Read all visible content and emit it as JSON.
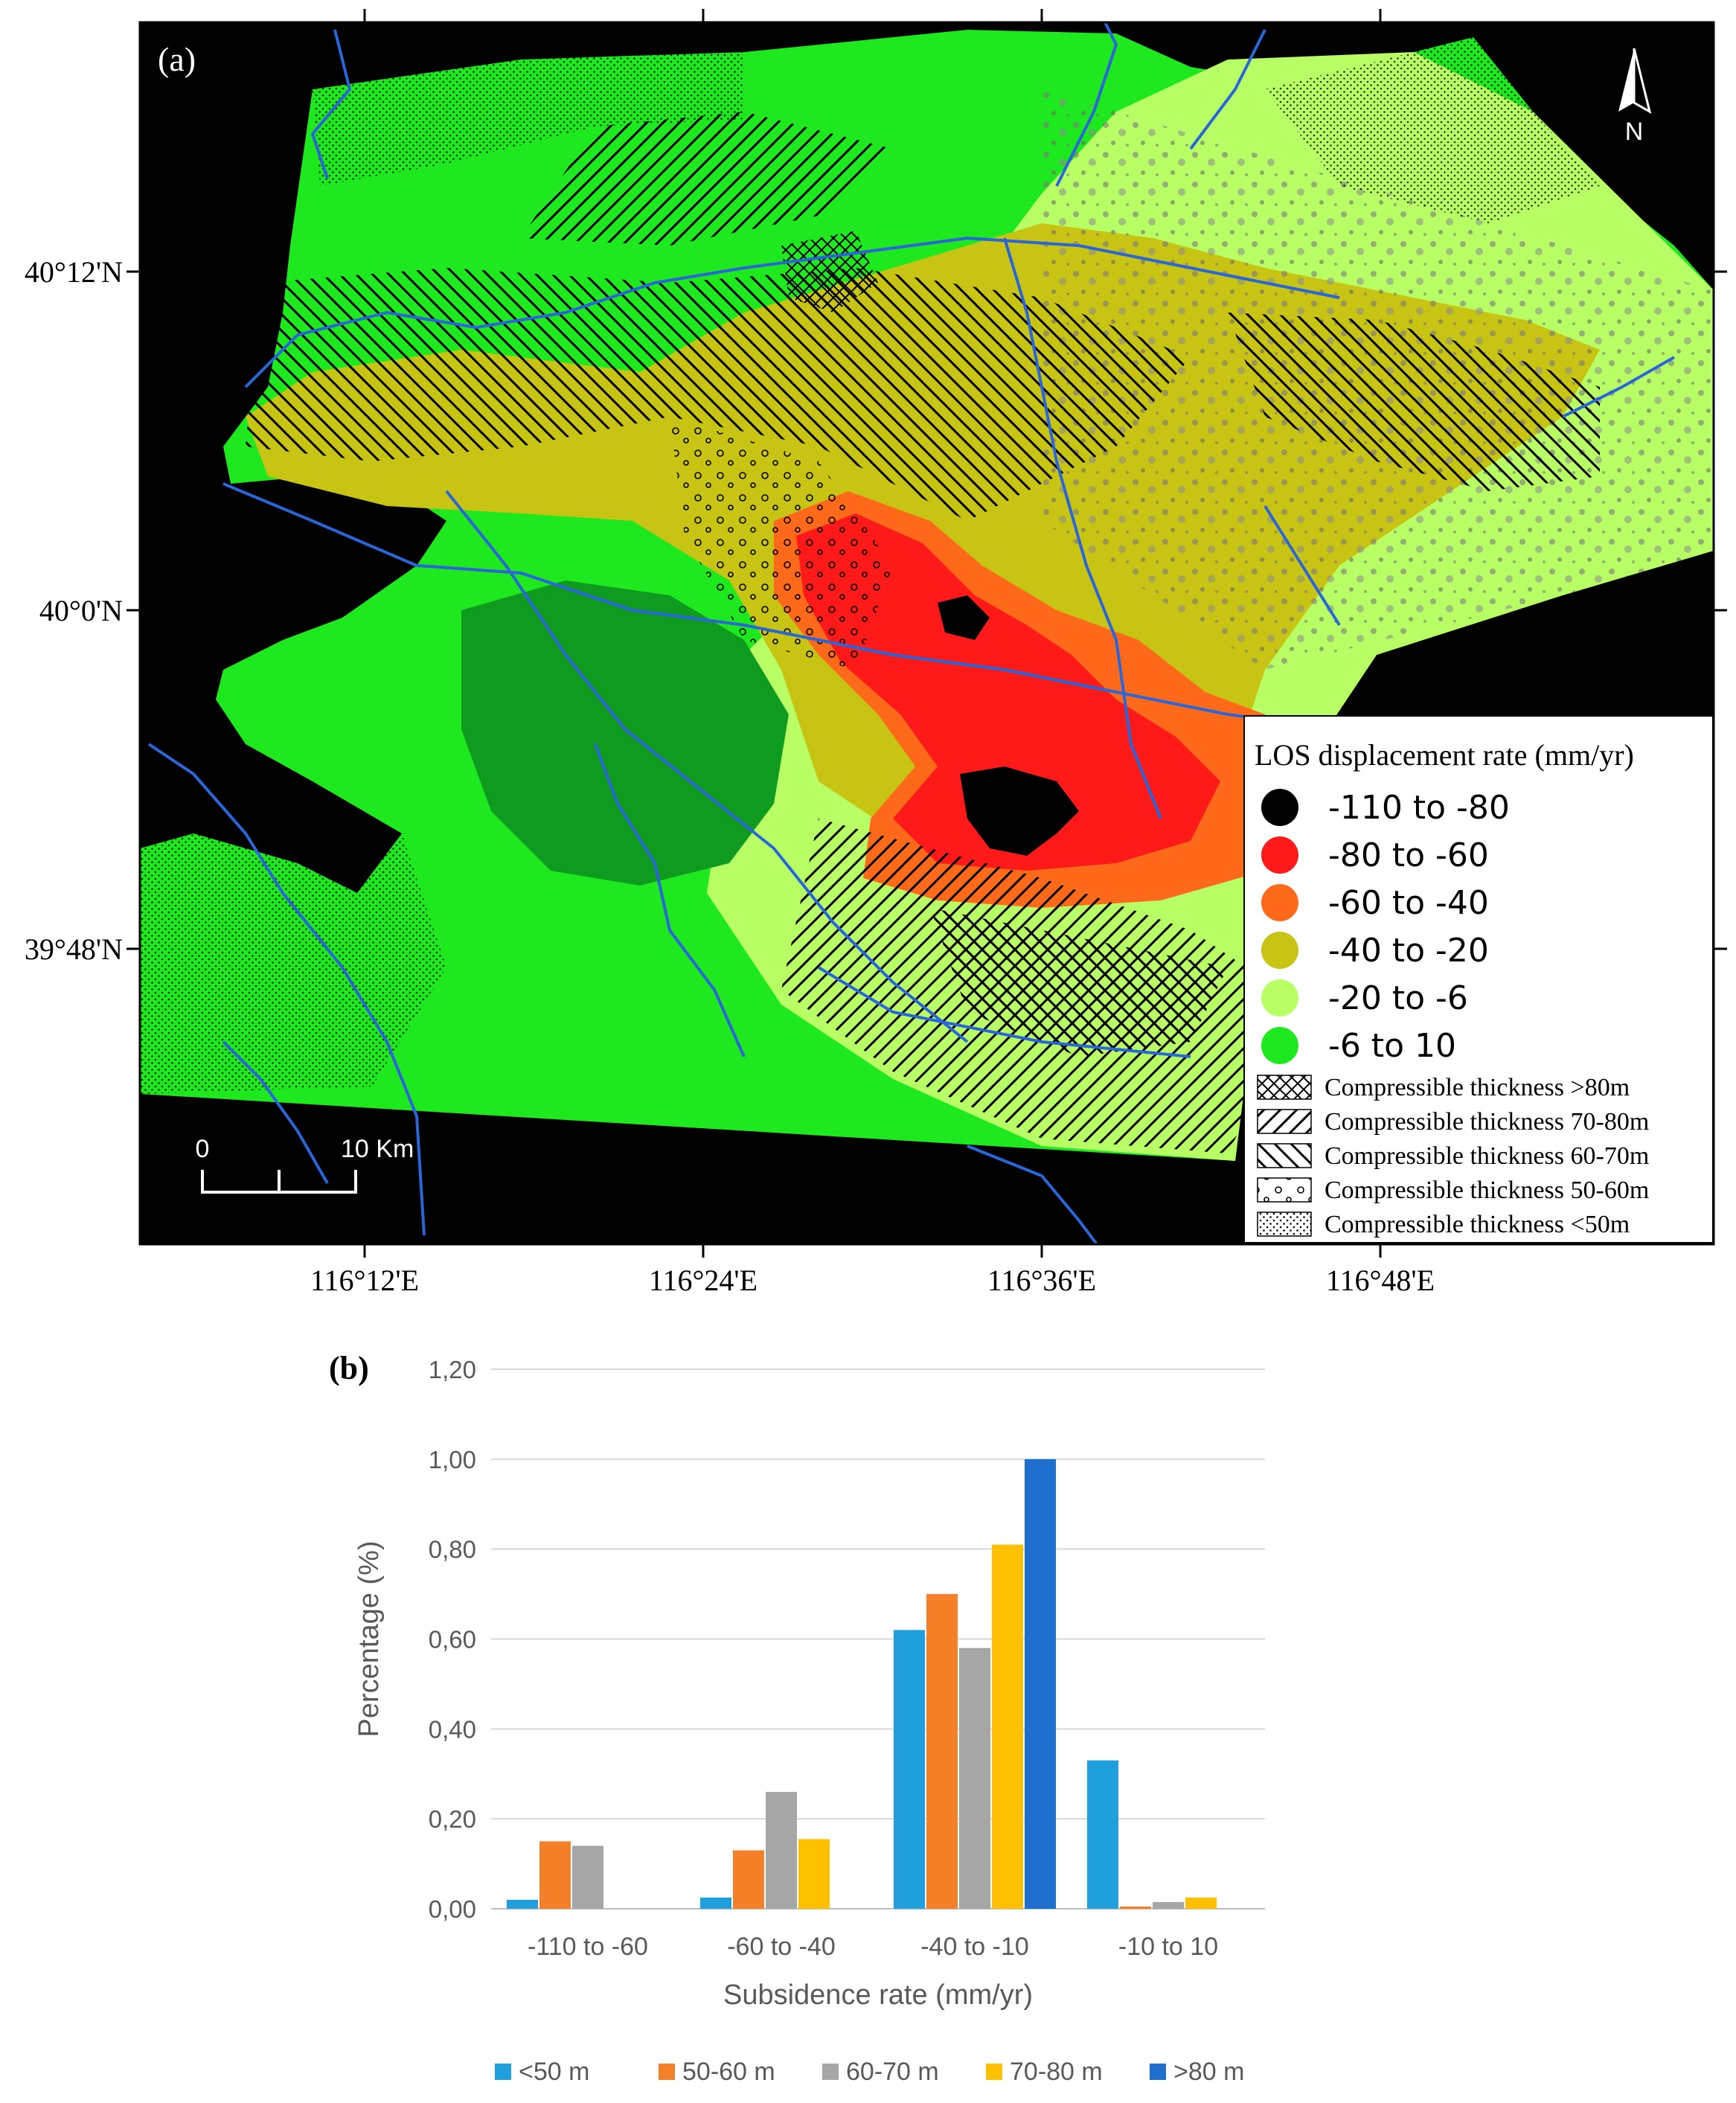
{
  "panel_a": {
    "label": "(a)",
    "north": "N",
    "scale": {
      "zero": "0",
      "end": "10 Km"
    },
    "lat_labels": [
      "40°12'N",
      "40°0'N",
      "39°48'N"
    ],
    "lon_labels": [
      "116°12'E",
      "116°24'E",
      "116°36'E",
      "116°48'E"
    ],
    "legend": {
      "title": "LOS displacement rate (mm/yr)",
      "rate_classes": [
        {
          "label": "-110  to  -80",
          "color": "#000000"
        },
        {
          "label": "-80  to  -60",
          "color": "#ff1a1a"
        },
        {
          "label": "-60  to  -40",
          "color": "#ff6a1a"
        },
        {
          "label": "-40  to  -20",
          "color": "#c8c413"
        },
        {
          "label": "-20  to  -6",
          "color": "#b8ff66"
        },
        {
          "label": "-6  to  10",
          "color": "#1ee81e"
        }
      ],
      "thickness_classes": [
        {
          "label": "Compressible thickness >80m",
          "pattern": "cross"
        },
        {
          "label": "Compressible thickness 70-80m",
          "pattern": "forward"
        },
        {
          "label": "Compressible thickness 60-70m",
          "pattern": "back"
        },
        {
          "label": "Compressible thickness 50-60m",
          "pattern": "circles"
        },
        {
          "label": "Compressible thickness <50m",
          "pattern": "dots"
        }
      ]
    },
    "colors": {
      "background": "#000000",
      "river": "#2a66d8",
      "green": "#1ee81e",
      "darkgreen": "#0f9a20",
      "lightgreen": "#b8ff66",
      "olive": "#c8c413",
      "orange": "#ff6a1a",
      "red": "#ff1a1a"
    }
  },
  "panel_b": {
    "label": "(b)",
    "chart_data": {
      "type": "bar",
      "categories": [
        "-110 to -60",
        "-60 to -40",
        "-40 to -10",
        "-10 to 10"
      ],
      "series": [
        {
          "name": "<50 m",
          "color": "#1f9fdb",
          "values": [
            0.02,
            0.025,
            0.62,
            0.33
          ]
        },
        {
          "name": "50-60 m",
          "color": "#f4812a",
          "values": [
            0.15,
            0.13,
            0.7,
            0.005
          ]
        },
        {
          "name": "60-70 m",
          "color": "#a6a6a6",
          "values": [
            0.14,
            0.26,
            0.58,
            0.015
          ]
        },
        {
          "name": "70-80 m",
          "color": "#ffc000",
          "values": [
            0.0,
            0.155,
            0.81,
            0.025
          ]
        },
        {
          "name": ">80 m",
          "color": "#1f6fce",
          "values": [
            0.0,
            0.0,
            1.0,
            0.0
          ]
        }
      ],
      "xlabel": "Subsidence rate (mm/yr)",
      "ylabel": "Percentage (%)",
      "ylim": [
        0,
        1.2
      ],
      "yticks": [
        "0,00",
        "0,20",
        "0,40",
        "0,60",
        "0,80",
        "1,00",
        "1,20"
      ],
      "grid": true,
      "legend_position": "bottom"
    }
  }
}
